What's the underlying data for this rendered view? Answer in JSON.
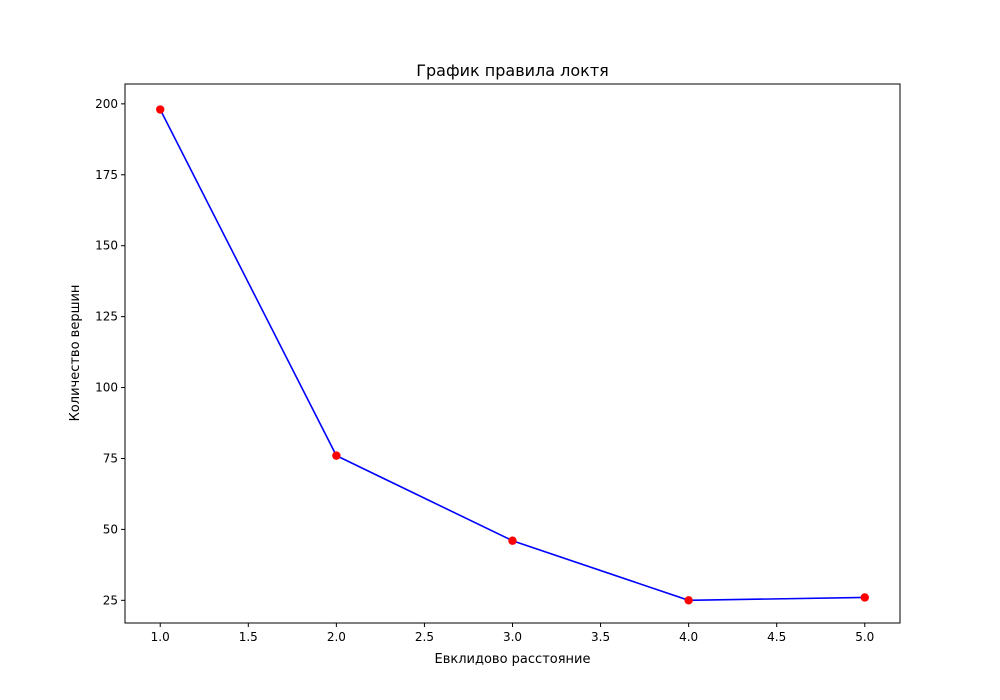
{
  "chart_data": {
    "type": "line",
    "title": "График правила локтя",
    "xlabel": "Евклидово расстояние",
    "ylabel": "Количество вершин",
    "x": [
      1.0,
      2.0,
      3.0,
      4.0,
      5.0
    ],
    "series": [
      {
        "values": [
          198,
          76,
          46,
          25,
          26
        ],
        "line_color": "#0000ff",
        "marker_color": "#ff0000"
      }
    ],
    "xlim": [
      0.8,
      5.2
    ],
    "ylim": [
      17,
      207
    ],
    "xticks": [
      1.0,
      1.5,
      2.0,
      2.5,
      3.0,
      3.5,
      4.0,
      4.5,
      5.0
    ],
    "xtick_labels": [
      "1.0",
      "1.5",
      "2.0",
      "2.5",
      "3.0",
      "3.5",
      "4.0",
      "4.5",
      "5.0"
    ],
    "yticks": [
      25,
      50,
      75,
      100,
      125,
      150,
      175,
      200
    ],
    "ytick_labels": [
      "25",
      "50",
      "75",
      "100",
      "125",
      "150",
      "175",
      "200"
    ],
    "grid": false,
    "legend": "none"
  }
}
